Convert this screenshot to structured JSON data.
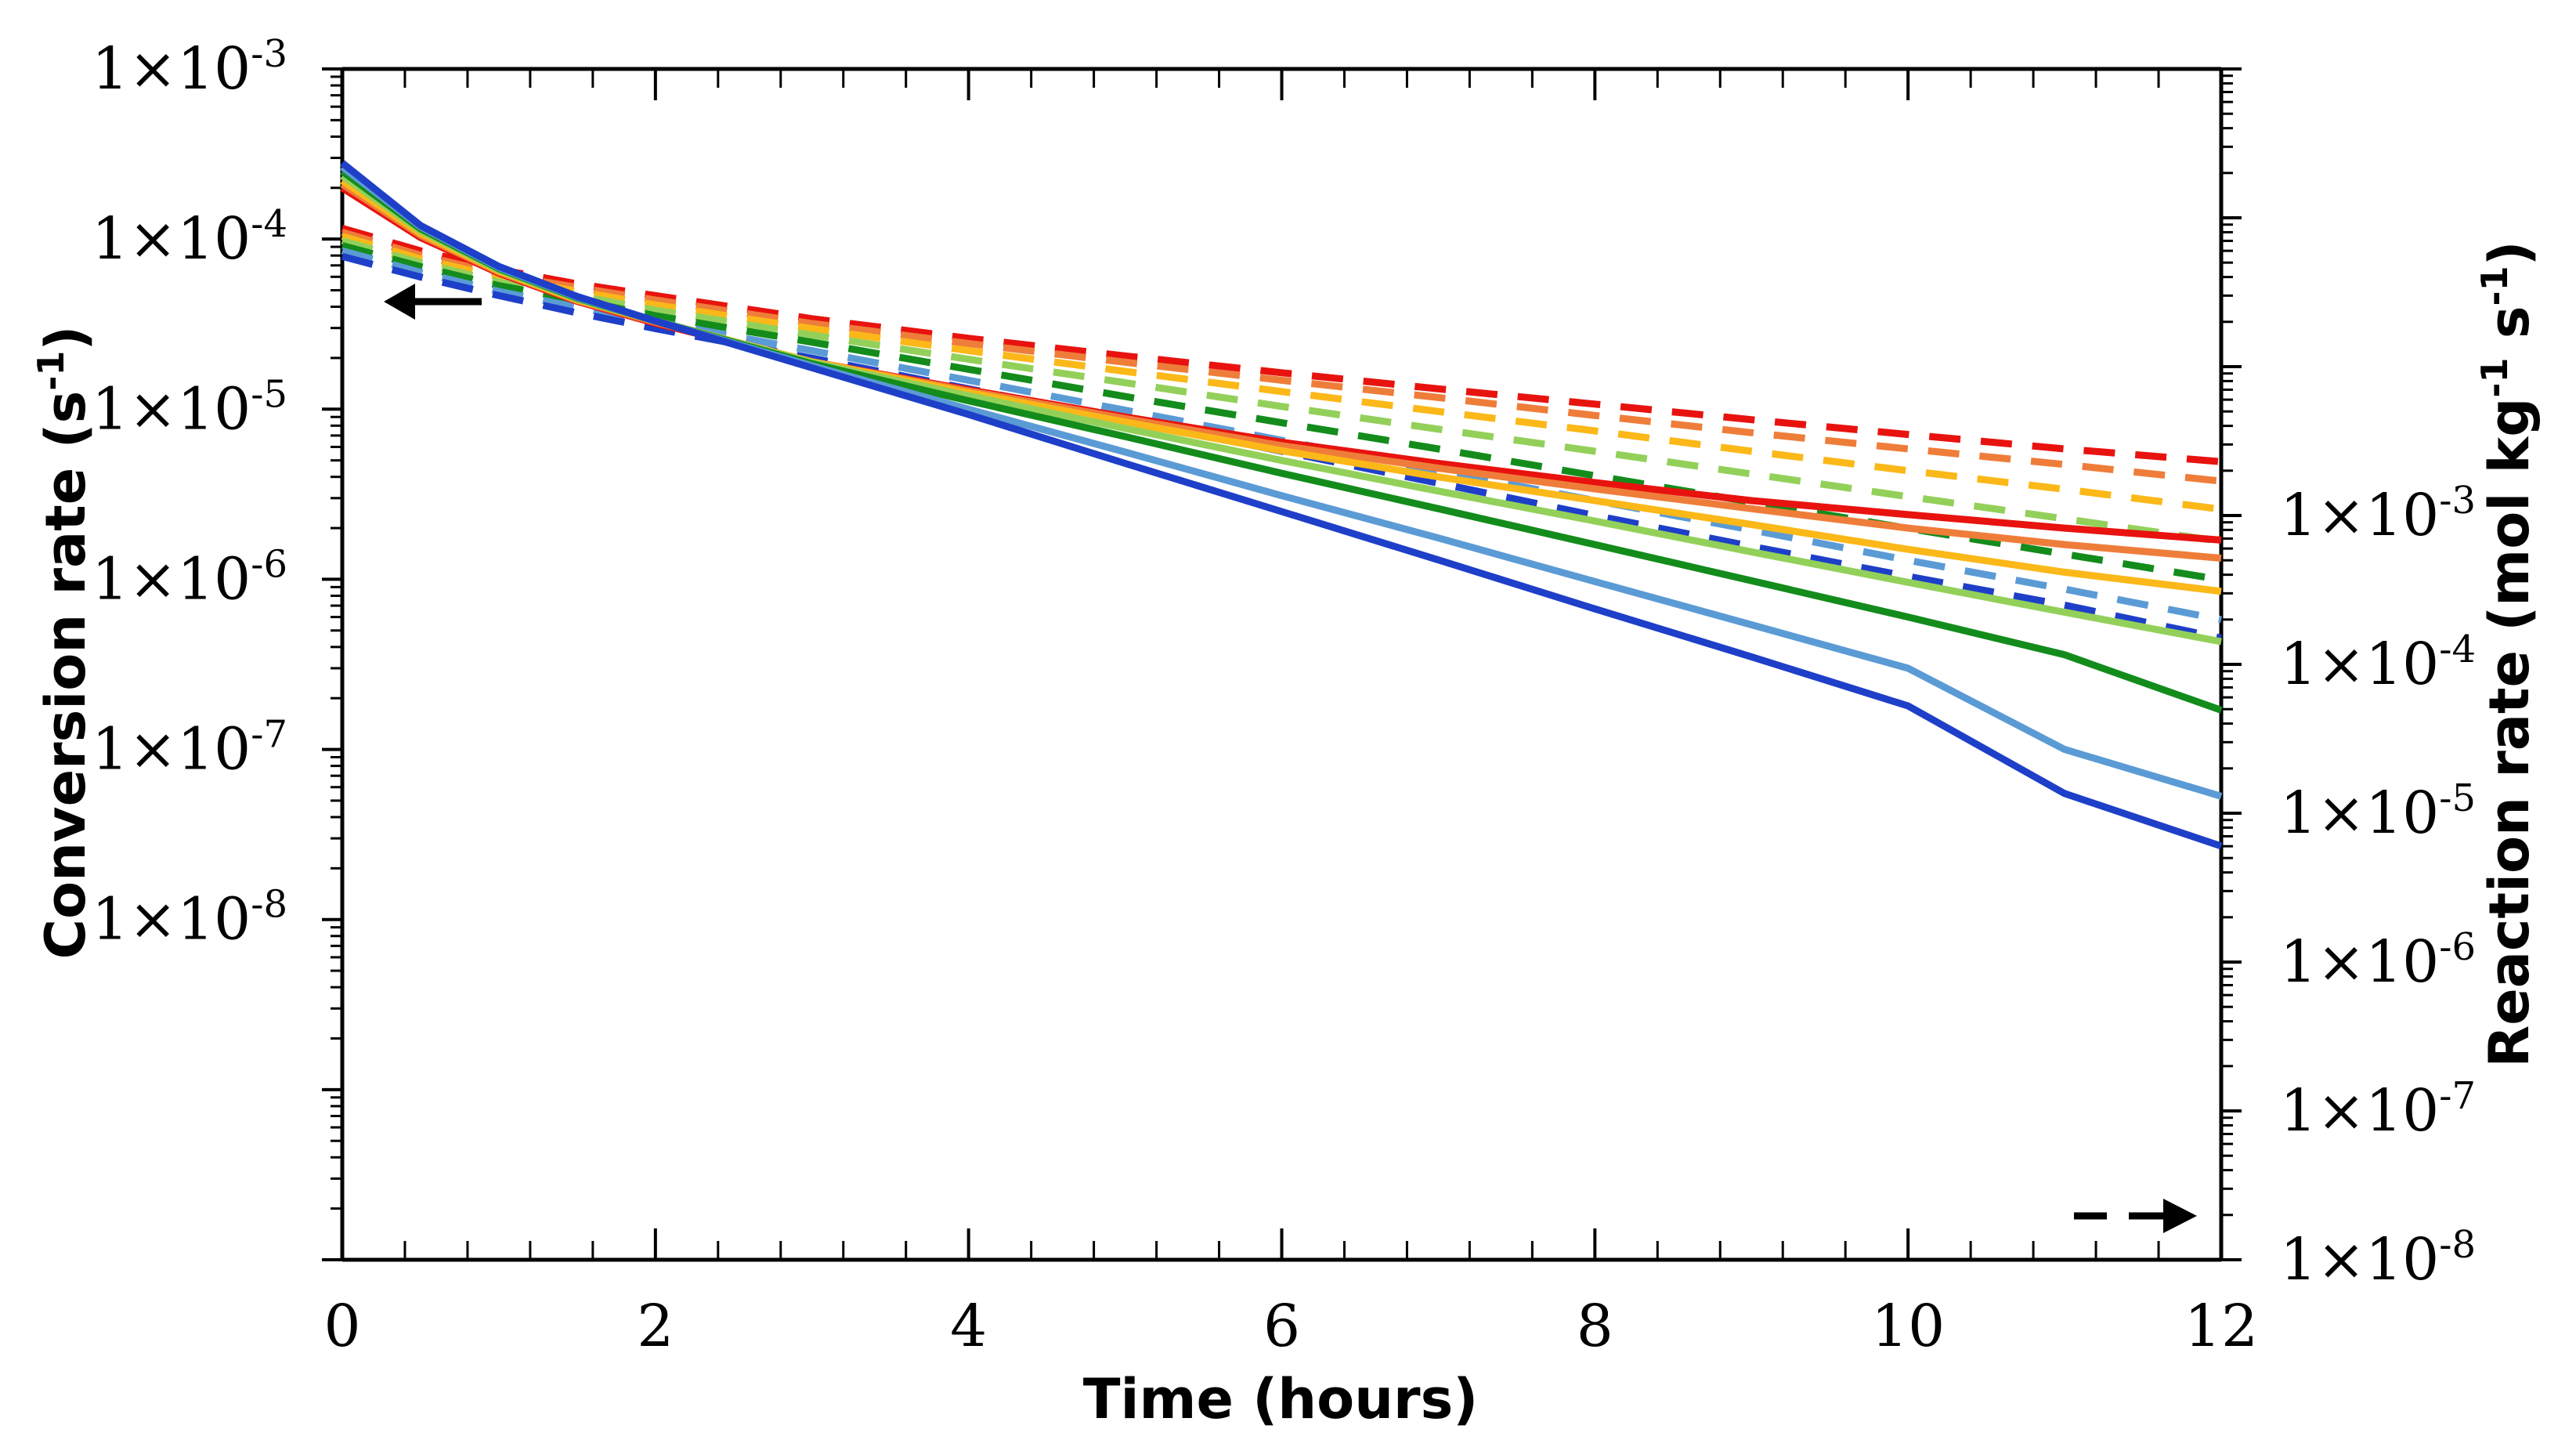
{
  "chart_data": {
    "type": "line",
    "title": "",
    "xlabel": "Time (hours)",
    "ylabel_left": "Conversion rate (s",
    "ylabel_left_sup": "-1",
    "ylabel_left_end": ")",
    "ylabel_right": "Reaction rate (mol kg",
    "ylabel_right_sup1": "-1",
    "ylabel_right_mid": " s",
    "ylabel_right_sup2": "-1",
    "ylabel_right_end": ")",
    "xlim": [
      0,
      12
    ],
    "xticks": [
      "0",
      "2",
      "4",
      "6",
      "8",
      "10",
      "12"
    ],
    "ylim_left": [
      1e-10,
      0.001
    ],
    "yticks_left": [
      {
        "value": 0.001,
        "base": "1×10",
        "exp": "-3"
      },
      {
        "value": 0.0001,
        "base": "1×10",
        "exp": "-4"
      },
      {
        "value": 1e-05,
        "base": "1×10",
        "exp": "-5"
      },
      {
        "value": 1e-06,
        "base": "1×10",
        "exp": "-6"
      },
      {
        "value": 1e-07,
        "base": "1×10",
        "exp": "-7"
      },
      {
        "value": 1e-08,
        "base": "1×10",
        "exp": "-8"
      }
    ],
    "ylim_right": [
      1e-08,
      1.0
    ],
    "yticks_right": [
      {
        "value": 0.001,
        "base": "1×10",
        "exp": "-3"
      },
      {
        "value": 0.0001,
        "base": "1×10",
        "exp": "-4"
      },
      {
        "value": 1e-05,
        "base": "1×10",
        "exp": "-5"
      },
      {
        "value": 1e-06,
        "base": "1×10",
        "exp": "-6"
      },
      {
        "value": 1e-07,
        "base": "1×10",
        "exp": "-7"
      },
      {
        "value": 1e-08,
        "base": "1×10",
        "exp": "-8"
      }
    ],
    "annotations": [
      {
        "kind": "arrow-left",
        "meaning": "solid lines use left axis (conversion rate)"
      },
      {
        "kind": "dashed-arrow-right",
        "meaning": "dashed lines use right axis (reaction rate)"
      }
    ],
    "x": [
      0,
      0.5,
      1,
      1.5,
      2,
      3,
      4,
      5,
      6,
      7,
      8,
      9,
      10,
      11,
      12
    ],
    "series": [
      {
        "name": "conversion-red",
        "axis": "left",
        "style": "solid",
        "color": "#e8130f",
        "values": [
          0.0002,
          0.000102,
          6.3e-05,
          4.3e-05,
          3.2e-05,
          1.9e-05,
          1.3e-05,
          9e-06,
          6.4e-06,
          4.8e-06,
          3.7e-06,
          2.9e-06,
          2.4e-06,
          2e-06,
          1.7e-06
        ]
      },
      {
        "name": "conversion-orange",
        "axis": "left",
        "style": "solid",
        "color": "#ef7d3a",
        "values": [
          0.00021,
          0.000105,
          6.4e-05,
          4.35e-05,
          3.25e-05,
          1.9e-05,
          1.28e-05,
          8.8e-06,
          6.1e-06,
          4.5e-06,
          3.4e-06,
          2.6e-06,
          2e-06,
          1.6e-06,
          1.33e-06
        ]
      },
      {
        "name": "conversion-yellow",
        "axis": "left",
        "style": "solid",
        "color": "#fbb818",
        "values": [
          0.00022,
          0.000108,
          6.5e-05,
          4.4e-05,
          3.3e-05,
          1.9e-05,
          1.25e-05,
          8.4e-06,
          5.7e-06,
          4e-06,
          2.9e-06,
          2.1e-06,
          1.5e-06,
          1.1e-06,
          8.5e-07
        ]
      },
      {
        "name": "conversion-lightgreen",
        "axis": "left",
        "style": "solid",
        "color": "#93d05a",
        "values": [
          0.000235,
          0.000112,
          6.6e-05,
          4.45e-05,
          3.3e-05,
          1.88e-05,
          1.2e-05,
          7.7e-06,
          5e-06,
          3.3e-06,
          2.2e-06,
          1.45e-06,
          9.6e-07,
          6.4e-07,
          4.3e-07
        ]
      },
      {
        "name": "conversion-green",
        "axis": "left",
        "style": "solid",
        "color": "#138c1c",
        "values": [
          0.00025,
          0.000115,
          6.7e-05,
          4.5e-05,
          3.3e-05,
          1.85e-05,
          1.12e-05,
          6.9e-06,
          4.2e-06,
          2.6e-06,
          1.6e-06,
          9.8e-07,
          6e-07,
          3.6e-07,
          1.7e-07
        ]
      },
      {
        "name": "conversion-lightblue",
        "axis": "left",
        "style": "solid",
        "color": "#5b9bd5",
        "values": [
          0.000265,
          0.000118,
          6.8e-05,
          4.55e-05,
          3.3e-05,
          1.8e-05,
          1e-05,
          5.6e-06,
          3.1e-06,
          1.75e-06,
          9.7e-07,
          5.4e-07,
          3e-07,
          1e-07,
          5.3e-08
        ]
      },
      {
        "name": "conversion-blue",
        "axis": "left",
        "style": "solid",
        "color": "#1e3fc8",
        "values": [
          0.00028,
          0.00012,
          6.9e-05,
          4.6e-05,
          3.3e-05,
          1.75e-05,
          9.3e-06,
          4.8e-06,
          2.5e-06,
          1.3e-06,
          6.7e-07,
          3.5e-07,
          1.8e-07,
          5.5e-08,
          2.7e-08
        ]
      },
      {
        "name": "reaction-red",
        "axis": "right",
        "style": "dashed",
        "color": "#e8130f",
        "values": [
          0.085,
          0.06,
          0.045,
          0.036,
          0.03,
          0.021,
          0.0155,
          0.0118,
          0.0091,
          0.0071,
          0.0056,
          0.0044,
          0.0035,
          0.0028,
          0.0023
        ]
      },
      {
        "name": "reaction-orange",
        "axis": "right",
        "style": "dashed",
        "color": "#ef7d3a",
        "values": [
          0.08,
          0.056,
          0.042,
          0.034,
          0.028,
          0.0195,
          0.0143,
          0.0107,
          0.0081,
          0.0062,
          0.0047,
          0.0036,
          0.0028,
          0.0022,
          0.0017
        ]
      },
      {
        "name": "reaction-yellow",
        "axis": "right",
        "style": "dashed",
        "color": "#fbb818",
        "values": [
          0.075,
          0.053,
          0.04,
          0.032,
          0.026,
          0.018,
          0.0128,
          0.0093,
          0.0068,
          0.005,
          0.0037,
          0.0027,
          0.002,
          0.0015,
          0.0011
        ]
      },
      {
        "name": "reaction-lightgreen",
        "axis": "right",
        "style": "dashed",
        "color": "#93d05a",
        "values": [
          0.07,
          0.05,
          0.037,
          0.03,
          0.024,
          0.0163,
          0.0112,
          0.0078,
          0.0054,
          0.0038,
          0.0027,
          0.0019,
          0.00134,
          0.00095,
          0.00067
        ]
      },
      {
        "name": "reaction-green",
        "axis": "right",
        "style": "dashed",
        "color": "#138c1c",
        "values": [
          0.065,
          0.047,
          0.035,
          0.028,
          0.022,
          0.0146,
          0.0096,
          0.0063,
          0.0042,
          0.0028,
          0.00185,
          0.00123,
          0.00082,
          0.00055,
          0.00037
        ]
      },
      {
        "name": "reaction-lightblue",
        "axis": "right",
        "style": "dashed",
        "color": "#5b9bd5",
        "values": [
          0.06,
          0.043,
          0.032,
          0.025,
          0.02,
          0.0128,
          0.0081,
          0.0051,
          0.0032,
          0.002,
          0.00126,
          0.0008,
          0.0005,
          0.00032,
          0.0002
        ]
      },
      {
        "name": "reaction-blue",
        "axis": "right",
        "style": "dashed",
        "color": "#1e3fc8",
        "values": [
          0.055,
          0.04,
          0.03,
          0.023,
          0.018,
          0.0114,
          0.0071,
          0.0044,
          0.0027,
          0.00165,
          0.001,
          0.00062,
          0.00039,
          0.00025,
          0.00015
        ]
      }
    ]
  }
}
